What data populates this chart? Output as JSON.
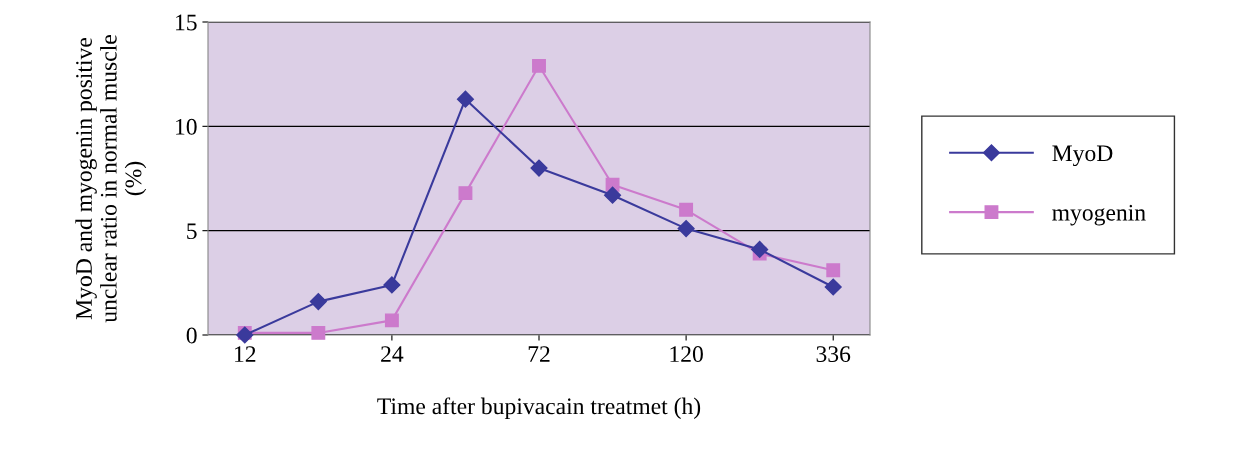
{
  "chart_data": {
    "type": "line",
    "xlabel": "Time after bupivacain treatmet (h)",
    "ylabel": "MyoD and myogenin positive\nunclear ratio in normal muscle\n(%)",
    "categories": [
      "12",
      null,
      "24",
      null,
      "72",
      null,
      "120",
      null,
      "336"
    ],
    "series": [
      {
        "name": "MyoD",
        "color": "#3a3a9c",
        "marker": "diamond",
        "values": [
          0,
          1.6,
          2.4,
          11.3,
          8.0,
          6.7,
          5.1,
          4.1,
          2.3
        ]
      },
      {
        "name": "myogenin",
        "color": "#cc7acc",
        "marker": "square",
        "values": [
          0.1,
          0.1,
          0.7,
          6.8,
          12.9,
          7.2,
          6.0,
          3.9,
          3.1
        ]
      }
    ],
    "ylim": [
      0,
      15
    ],
    "yticks": [
      0,
      5,
      10,
      15
    ],
    "grid": "y",
    "legend": "right",
    "line_style": "solid"
  }
}
